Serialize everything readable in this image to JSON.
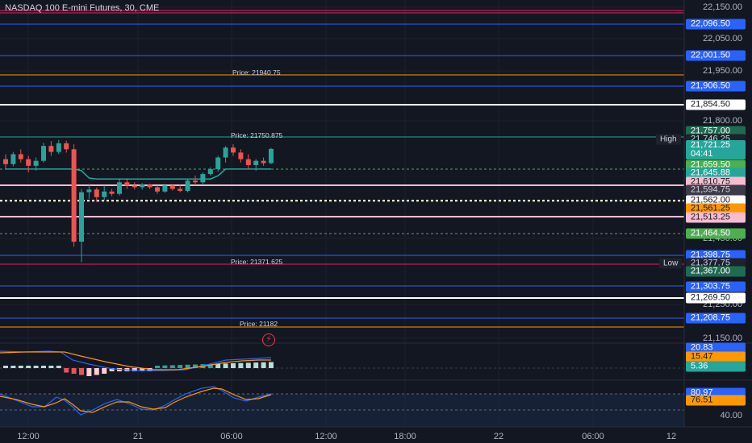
{
  "header": {
    "title": "NASDAQ 100 E-mini Futures, 30, CME"
  },
  "y_axis": {
    "labels": [
      "22,150.00",
      "22,050.00",
      "21,950.00",
      "21,800.00",
      "21,450.00",
      "21,250.00",
      "21,150.00"
    ]
  },
  "price_badges": [
    {
      "text": "22,096.50",
      "bg": "#2962ff",
      "fg": "#ffffff"
    },
    {
      "text": "22,001.50",
      "bg": "#2962ff",
      "fg": "#ffffff"
    },
    {
      "text": "21,906.50",
      "bg": "#2962ff",
      "fg": "#ffffff"
    },
    {
      "text": "21,854.50",
      "bg": "#ffffff",
      "fg": "#131722"
    },
    {
      "text": "21,757.00",
      "bg": "#1f6b52",
      "fg": "#ffffff"
    },
    {
      "text": "21,746.25",
      "bg": "#1e222d",
      "fg": "#d1d4dc"
    },
    {
      "text": "21,721.25",
      "bg": "#26a69a",
      "fg": "#ffffff",
      "sub": "04:41"
    },
    {
      "text": "21,659.50",
      "bg": "#4caf50",
      "fg": "#ffffff"
    },
    {
      "text": "21,645.88",
      "bg": "#26a69a",
      "fg": "#ffffff"
    },
    {
      "text": "21,610.75",
      "bg": "#f8bbd0",
      "fg": "#131722"
    },
    {
      "text": "21,594.75",
      "bg": "#3d3a4a",
      "fg": "#d1d4dc"
    },
    {
      "text": "21,562.00",
      "bg": "#ffffff",
      "fg": "#131722"
    },
    {
      "text": "21,561.25",
      "bg": "#ff9800",
      "fg": "#131722"
    },
    {
      "text": "21,513.25",
      "bg": "#f8bbd0",
      "fg": "#131722"
    },
    {
      "text": "21,464.50",
      "bg": "#4caf50",
      "fg": "#ffffff"
    },
    {
      "text": "21,398.75",
      "bg": "#2962ff",
      "fg": "#ffffff"
    },
    {
      "text": "21,377.75",
      "bg": "#1e222d",
      "fg": "#d1d4dc"
    },
    {
      "text": "21,367.00",
      "bg": "#1f6b52",
      "fg": "#ffffff"
    },
    {
      "text": "21,303.75",
      "bg": "#2962ff",
      "fg": "#ffffff"
    },
    {
      "text": "21,269.50",
      "bg": "#ffffff",
      "fg": "#131722"
    },
    {
      "text": "21,208.75",
      "bg": "#2962ff",
      "fg": "#ffffff"
    }
  ],
  "price_lines": [
    {
      "label": "Price: 21940.75"
    },
    {
      "label": "Price: 21750.875"
    },
    {
      "label": "Price: 21371.625"
    },
    {
      "label": "Price: 21182"
    }
  ],
  "tags": {
    "high": "High",
    "low": "Low"
  },
  "macd_badges": [
    {
      "text": "20.83",
      "bg": "#2962ff",
      "fg": "#ffffff"
    },
    {
      "text": "15.47",
      "bg": "#ff9800",
      "fg": "#131722"
    },
    {
      "text": "5.36",
      "bg": "#26a69a",
      "fg": "#ffffff"
    }
  ],
  "stoch_badges": [
    {
      "text": "80.97",
      "bg": "#2962ff",
      "fg": "#ffffff"
    },
    {
      "text": "76.51",
      "bg": "#ff9800",
      "fg": "#131722"
    }
  ],
  "stoch_axis": {
    "label": "40.00"
  },
  "x_axis": {
    "labels": [
      "12:00",
      "21",
      "06:00",
      "12:00",
      "18:00",
      "22",
      "06:00",
      "12"
    ]
  },
  "colors": {
    "up": "#26a69a",
    "down": "#ef5350",
    "bg": "#131722",
    "grid": "#1e222d"
  },
  "chart_data": {
    "type": "candlestick",
    "title": "NASDAQ 100 E-mini Futures, 30, CME",
    "candles": [
      {
        "o": 21690,
        "h": 21705,
        "l": 21660,
        "c": 21675
      },
      {
        "o": 21675,
        "h": 21712,
        "l": 21668,
        "c": 21705
      },
      {
        "o": 21705,
        "h": 21720,
        "l": 21680,
        "c": 21690
      },
      {
        "o": 21690,
        "h": 21700,
        "l": 21650,
        "c": 21670
      },
      {
        "o": 21670,
        "h": 21695,
        "l": 21655,
        "c": 21685
      },
      {
        "o": 21685,
        "h": 21740,
        "l": 21680,
        "c": 21730
      },
      {
        "o": 21730,
        "h": 21745,
        "l": 21700,
        "c": 21712
      },
      {
        "o": 21712,
        "h": 21748,
        "l": 21705,
        "c": 21738
      },
      {
        "o": 21738,
        "h": 21746,
        "l": 21710,
        "c": 21720
      },
      {
        "o": 21720,
        "h": 21735,
        "l": 21425,
        "c": 21440
      },
      {
        "o": 21440,
        "h": 21600,
        "l": 21378,
        "c": 21590
      },
      {
        "o": 21590,
        "h": 21615,
        "l": 21570,
        "c": 21598
      },
      {
        "o": 21598,
        "h": 21604,
        "l": 21560,
        "c": 21575
      },
      {
        "o": 21575,
        "h": 21610,
        "l": 21565,
        "c": 21592
      },
      {
        "o": 21592,
        "h": 21600,
        "l": 21578,
        "c": 21585
      },
      {
        "o": 21585,
        "h": 21628,
        "l": 21580,
        "c": 21620
      },
      {
        "o": 21620,
        "h": 21632,
        "l": 21600,
        "c": 21610
      },
      {
        "o": 21610,
        "h": 21620,
        "l": 21598,
        "c": 21605
      },
      {
        "o": 21605,
        "h": 21618,
        "l": 21598,
        "c": 21613
      },
      {
        "o": 21613,
        "h": 21616,
        "l": 21600,
        "c": 21605
      },
      {
        "o": 21605,
        "h": 21610,
        "l": 21585,
        "c": 21592
      },
      {
        "o": 21592,
        "h": 21615,
        "l": 21588,
        "c": 21610
      },
      {
        "o": 21610,
        "h": 21615,
        "l": 21595,
        "c": 21600
      },
      {
        "o": 21600,
        "h": 21612,
        "l": 21590,
        "c": 21594
      },
      {
        "o": 21594,
        "h": 21630,
        "l": 21590,
        "c": 21625
      },
      {
        "o": 21625,
        "h": 21640,
        "l": 21610,
        "c": 21620
      },
      {
        "o": 21620,
        "h": 21650,
        "l": 21612,
        "c": 21645
      },
      {
        "o": 21645,
        "h": 21665,
        "l": 21640,
        "c": 21660
      },
      {
        "o": 21660,
        "h": 21700,
        "l": 21652,
        "c": 21695
      },
      {
        "o": 21695,
        "h": 21730,
        "l": 21680,
        "c": 21725
      },
      {
        "o": 21725,
        "h": 21735,
        "l": 21700,
        "c": 21710
      },
      {
        "o": 21710,
        "h": 21720,
        "l": 21680,
        "c": 21690
      },
      {
        "o": 21690,
        "h": 21705,
        "l": 21660,
        "c": 21672
      },
      {
        "o": 21672,
        "h": 21690,
        "l": 21655,
        "c": 21685
      },
      {
        "o": 21685,
        "h": 21695,
        "l": 21670,
        "c": 21678
      },
      {
        "o": 21678,
        "h": 21724,
        "l": 21675,
        "c": 21721
      }
    ]
  }
}
